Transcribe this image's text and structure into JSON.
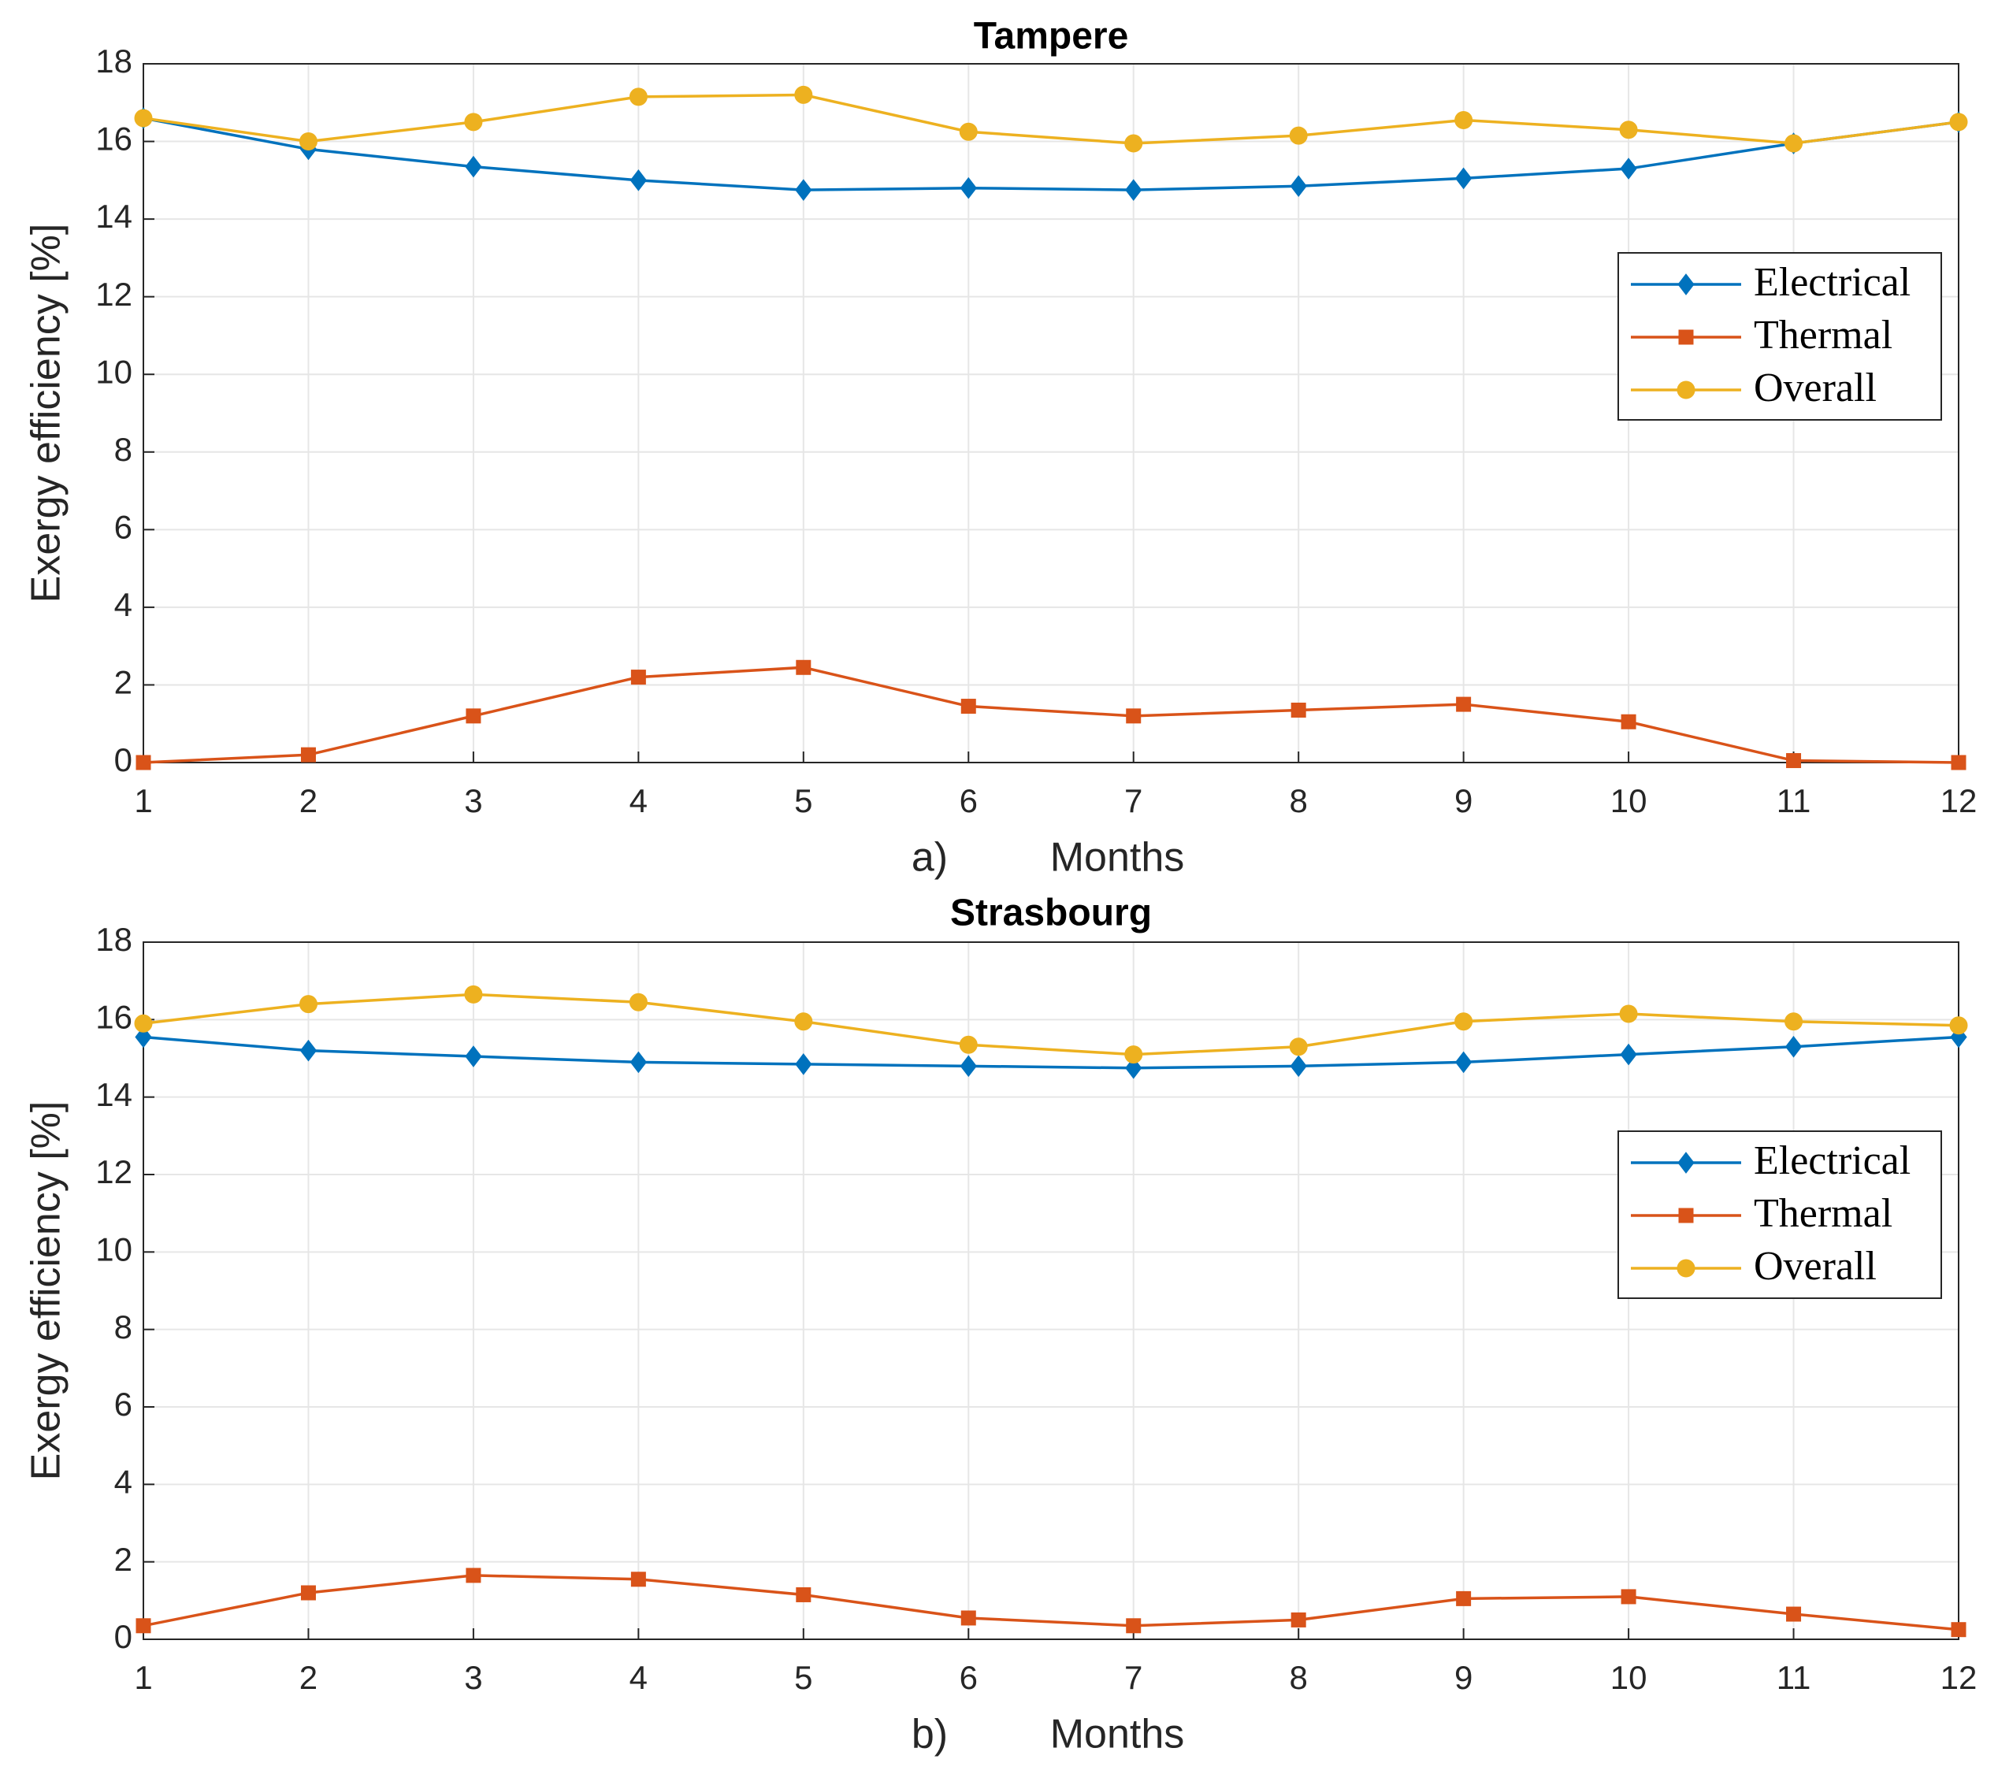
{
  "chart_data": [
    {
      "type": "line",
      "title": "Tampere",
      "panel_label": "a)",
      "xlabel": "Months",
      "ylabel": "Exergy efficiency [%]",
      "x": [
        1,
        2,
        3,
        4,
        5,
        6,
        7,
        8,
        9,
        10,
        11,
        12
      ],
      "xlim": [
        1,
        12
      ],
      "xticks": [
        1,
        2,
        3,
        4,
        5,
        6,
        7,
        8,
        9,
        10,
        11,
        12
      ],
      "ylim": [
        0,
        18
      ],
      "yticks": [
        0,
        2,
        4,
        6,
        8,
        10,
        12,
        14,
        16,
        18
      ],
      "grid": true,
      "legend": "northeast",
      "series": [
        {
          "name": "Electrical",
          "color": "#0072BD",
          "marker": "diamond",
          "values": [
            16.6,
            15.8,
            15.35,
            15.0,
            14.75,
            14.8,
            14.75,
            14.85,
            15.05,
            15.3,
            15.95,
            16.5
          ]
        },
        {
          "name": "Thermal",
          "color": "#D95319",
          "marker": "square",
          "values": [
            0,
            0.2,
            1.2,
            2.2,
            2.45,
            1.45,
            1.2,
            1.35,
            1.5,
            1.05,
            0.05,
            0
          ]
        },
        {
          "name": "Overall",
          "color": "#EDB120",
          "marker": "circle",
          "values": [
            16.6,
            16.0,
            16.5,
            17.15,
            17.2,
            16.25,
            15.95,
            16.15,
            16.55,
            16.3,
            15.95,
            16.5
          ]
        }
      ]
    },
    {
      "type": "line",
      "title": "Strasbourg",
      "panel_label": "b)",
      "xlabel": "Months",
      "ylabel": "Exergy efficiency [%]",
      "x": [
        1,
        2,
        3,
        4,
        5,
        6,
        7,
        8,
        9,
        10,
        11,
        12
      ],
      "xlim": [
        1,
        12
      ],
      "xticks": [
        1,
        2,
        3,
        4,
        5,
        6,
        7,
        8,
        9,
        10,
        11,
        12
      ],
      "ylim": [
        0,
        18
      ],
      "yticks": [
        0,
        2,
        4,
        6,
        8,
        10,
        12,
        14,
        16,
        18
      ],
      "grid": true,
      "legend": "northeast",
      "series": [
        {
          "name": "Electrical",
          "color": "#0072BD",
          "marker": "diamond",
          "values": [
            15.55,
            15.2,
            15.05,
            14.9,
            14.85,
            14.8,
            14.75,
            14.8,
            14.9,
            15.1,
            15.3,
            15.55
          ]
        },
        {
          "name": "Thermal",
          "color": "#D95319",
          "marker": "square",
          "values": [
            0.35,
            1.2,
            1.65,
            1.55,
            1.15,
            0.55,
            0.35,
            0.5,
            1.05,
            1.1,
            0.65,
            0.25
          ]
        },
        {
          "name": "Overall",
          "color": "#EDB120",
          "marker": "circle",
          "values": [
            15.9,
            16.4,
            16.65,
            16.45,
            15.95,
            15.35,
            15.1,
            15.3,
            15.95,
            16.15,
            15.95,
            15.85
          ]
        }
      ]
    }
  ]
}
